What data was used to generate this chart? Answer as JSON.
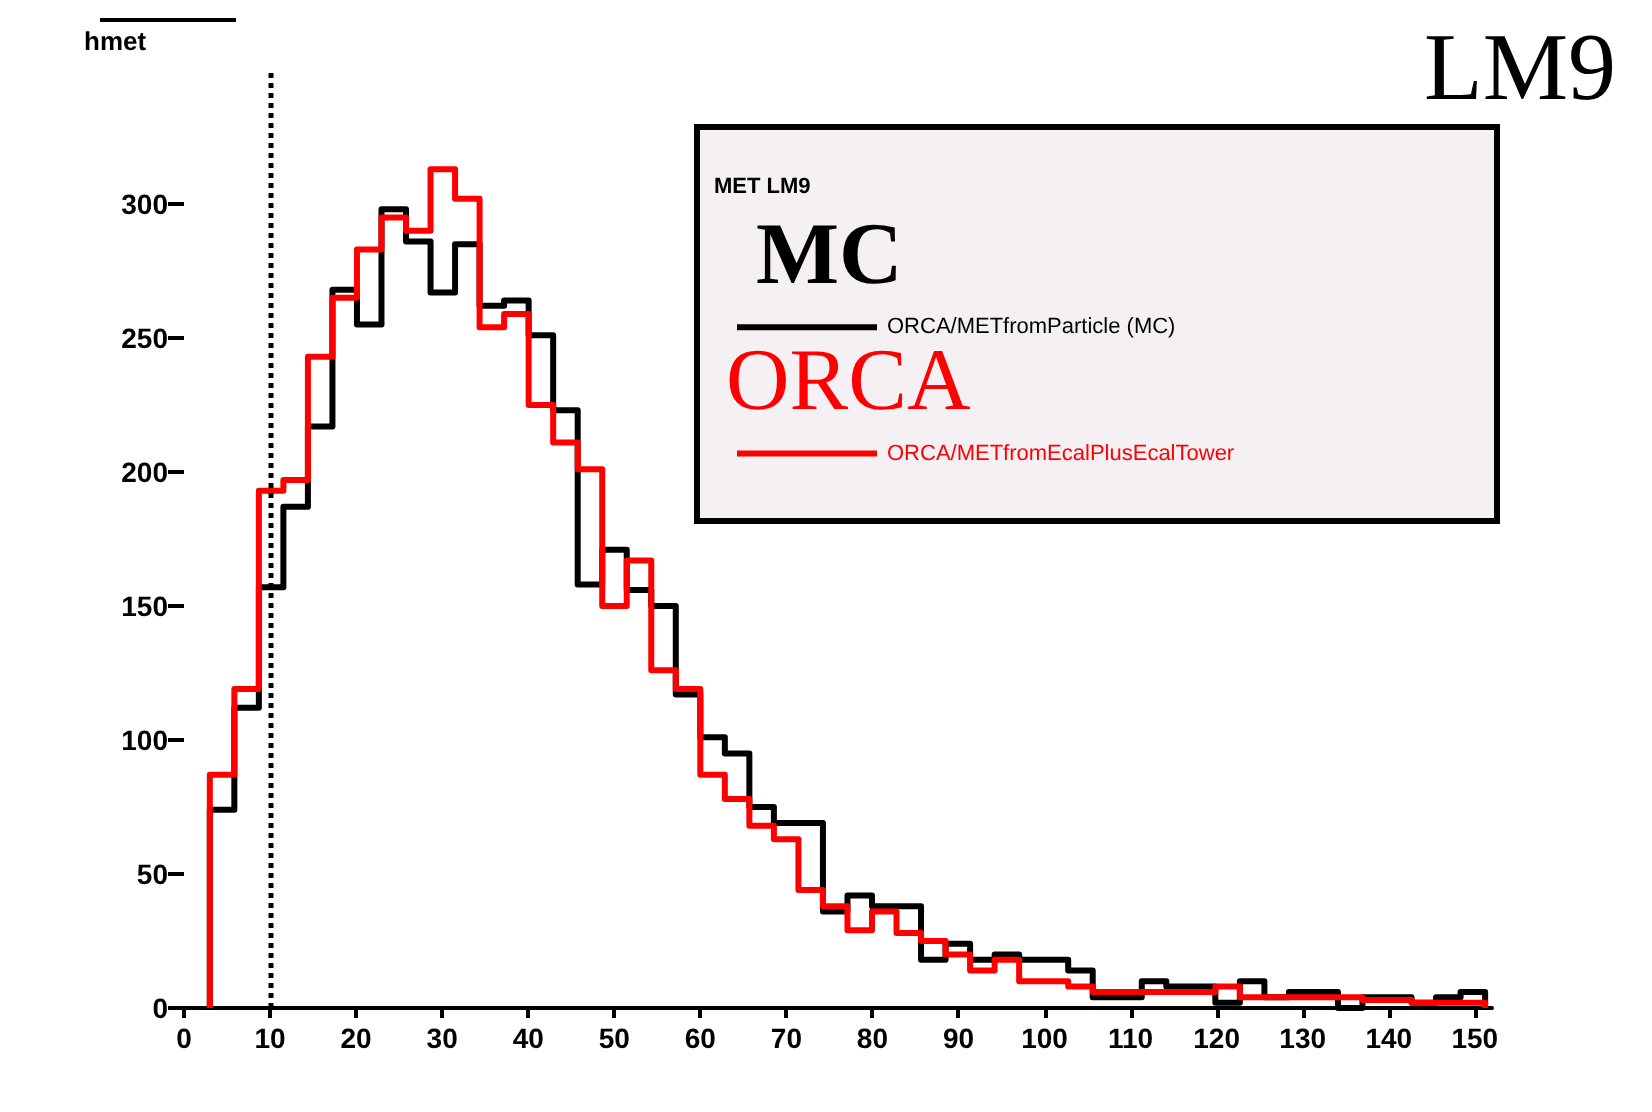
{
  "chart_data": {
    "type": "histogram",
    "bins": [
      3,
      5.85,
      8.7,
      11.55,
      14.4,
      17.25,
      20.1,
      22.95,
      25.8,
      28.65,
      31.5,
      34.35,
      37.2,
      40.05,
      42.9,
      45.75,
      48.6,
      51.45,
      54.3,
      57.15,
      60,
      62.85,
      65.7,
      68.55,
      71.4,
      74.25,
      77.1,
      79.95,
      82.8,
      85.65,
      88.5,
      91.35,
      94.2,
      97.05,
      99.9,
      102.75,
      105.6,
      108.45,
      111.3,
      114.15,
      117,
      119.85,
      122.7,
      125.55,
      128.4,
      131.25,
      134.1,
      136.95,
      139.8,
      142.65,
      145.5,
      148.35,
      151.2
    ],
    "series": [
      {
        "name": "ORCA/METfromParticle (MC)",
        "color": "#000000",
        "values": [
          74,
          112,
          157,
          187,
          217,
          268,
          255,
          298,
          286,
          267,
          285,
          262,
          264,
          251,
          223,
          158,
          171,
          156,
          150,
          117,
          101,
          95,
          75,
          69,
          69,
          36,
          42,
          38,
          38,
          18,
          24,
          18,
          20,
          18,
          18,
          14,
          4,
          4,
          10,
          8,
          8,
          2,
          10,
          4,
          6,
          6,
          0,
          4,
          4,
          2,
          4,
          6
        ]
      },
      {
        "name": "ORCA/METfromEcalPlusEcalTower",
        "color": "#ff0000",
        "values": [
          87,
          119,
          193,
          197,
          243,
          265,
          283,
          295,
          290,
          313,
          302,
          254,
          259,
          225,
          211,
          201,
          150,
          167,
          126,
          119,
          87,
          78,
          68,
          63,
          44,
          38,
          29,
          36,
          28,
          25,
          20,
          14,
          18,
          10,
          10,
          8,
          6,
          6,
          6,
          6,
          6,
          8,
          4,
          4,
          4,
          4,
          4,
          3,
          3,
          2,
          2,
          2
        ]
      }
    ],
    "legend_title": "MET LM9",
    "annotations": [
      "LM9",
      "hmet",
      "MC",
      "ORCA"
    ],
    "xlim": [
      0,
      152
    ],
    "xticks": [
      0,
      10,
      20,
      30,
      40,
      50,
      60,
      70,
      80,
      90,
      100,
      110,
      120,
      130,
      140,
      150
    ],
    "ylim": [
      0,
      350
    ],
    "yticks": [
      0,
      50,
      100,
      150,
      200,
      250,
      300
    ],
    "ref_lines": [
      {
        "axis": "x",
        "value": 10,
        "line_style": "dotted",
        "color": "#000000"
      }
    ],
    "grid": false,
    "legend": "top right"
  }
}
